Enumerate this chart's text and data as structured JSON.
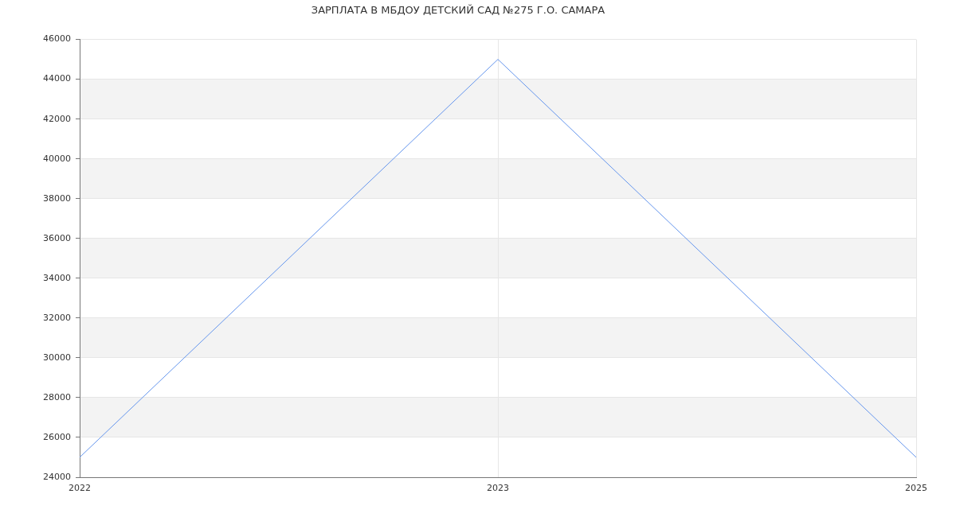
{
  "chart_data": {
    "type": "line",
    "title": "ЗАРПЛАТА В МБДОУ ДЕТСКИЙ САД №275 Г.О. САМАРА",
    "categories": [
      "2022",
      "2023",
      "2025"
    ],
    "series": [
      {
        "color": "#6495ed",
        "values": [
          25000,
          45000,
          25000
        ]
      }
    ],
    "ylim": [
      24000,
      46000
    ],
    "yticks": [
      24000,
      26000,
      28000,
      30000,
      32000,
      34000,
      36000,
      38000,
      40000,
      42000,
      44000,
      46000
    ],
    "grid": true
  }
}
